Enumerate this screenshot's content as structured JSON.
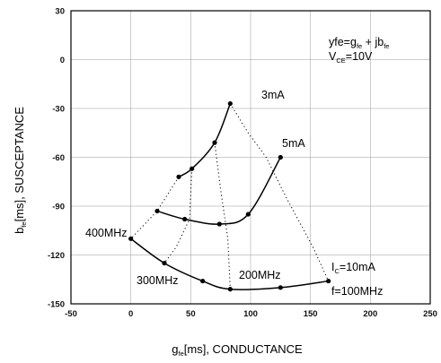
{
  "chart_data": {
    "type": "line",
    "xlabel": "g_fe[ms], CONDUCTANCE",
    "ylabel": "b_fe[ms], SUSCEPTANCE",
    "xlim": [
      -50,
      250
    ],
    "ylim": [
      -150,
      30
    ],
    "x_ticks": [
      "-50",
      "0",
      "50",
      "100",
      "150",
      "200",
      "250"
    ],
    "y_ticks": [
      "30",
      "0",
      "-30",
      "-60",
      "-90",
      "-120",
      "-150"
    ],
    "grid": true,
    "legend": {
      "placement": "top-right",
      "line1": {
        "main": "yfe=g",
        "sub1": "fe",
        "mid": " + jb",
        "sub2": "fe"
      },
      "line2": {
        "main": "V",
        "sub": "CE",
        "rest": "=10V"
      }
    },
    "series": [
      {
        "name": "3mA",
        "x": [
          40,
          51,
          70,
          83
        ],
        "y": [
          -72,
          -67,
          -51,
          -27
        ]
      },
      {
        "name": "5mA",
        "x": [
          22,
          45,
          74,
          98,
          125
        ],
        "y": [
          -93,
          -98,
          -101,
          -95,
          -60
        ]
      },
      {
        "name": "Ic=10mA",
        "x": [
          0,
          28,
          60,
          83,
          125,
          165
        ],
        "y": [
          -110,
          -125,
          -136,
          -141,
          -140,
          -136
        ]
      }
    ],
    "frequency_lines": [
      {
        "x": [
          83,
          98,
          113,
          130,
          152,
          165
        ],
        "y": [
          -27,
          -45,
          -60,
          -85,
          -115,
          -136
        ]
      },
      {
        "x": [
          70,
          75,
          81,
          83
        ],
        "y": [
          -51,
          -80,
          -110,
          -141
        ]
      },
      {
        "x": [
          51,
          49,
          38,
          28
        ],
        "y": [
          -67,
          -98,
          -115,
          -125
        ]
      },
      {
        "x": [
          40,
          22,
          0
        ],
        "y": [
          -72,
          -93,
          -110
        ]
      }
    ],
    "annotations": {
      "c3": "3mA",
      "c5": "5mA",
      "c10_main": "I",
      "c10_sub": "C",
      "c10_rest": "=10mA",
      "f100": "f=100MHz",
      "f200": "200MHz",
      "f300": "300MHz",
      "f400": "400MHz"
    }
  }
}
